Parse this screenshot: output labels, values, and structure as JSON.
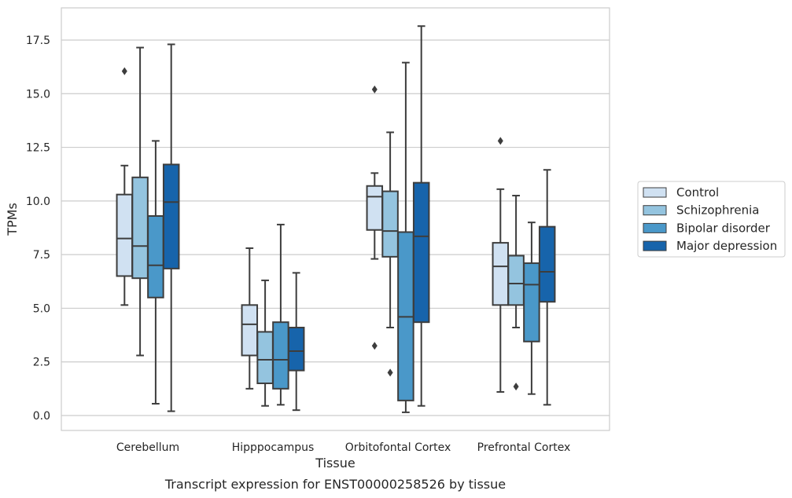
{
  "chart_data": {
    "type": "box",
    "title": "",
    "caption": "Transcript expression for ENST00000258526 by tissue",
    "xlabel": "Tissue",
    "ylabel": "TPMs",
    "ylim": [
      -0.7,
      19.1
    ],
    "yticks": [
      0.0,
      2.5,
      5.0,
      7.5,
      10.0,
      12.5,
      15.0,
      17.5
    ],
    "ytick_labels": [
      "0.0",
      "2.5",
      "5.0",
      "7.5",
      "10.0",
      "12.5",
      "15.0",
      "17.5"
    ],
    "grid": "horizontal",
    "legend_position": "right",
    "categories": [
      "Cerebellum",
      "Hipppocampus",
      "Orbitofontal Cortex",
      "Prefrontal Cortex"
    ],
    "series": [
      {
        "name": "Control",
        "color": "#d0e1f2",
        "boxes": [
          {
            "whisker_low": 5.15,
            "q1": 6.5,
            "median": 8.25,
            "q3": 10.3,
            "whisker_high": 11.65,
            "outliers": [
              16.05
            ]
          },
          {
            "whisker_low": 1.25,
            "q1": 2.8,
            "median": 4.25,
            "q3": 5.15,
            "whisker_high": 7.8,
            "outliers": []
          },
          {
            "whisker_low": 7.3,
            "q1": 8.65,
            "median": 10.2,
            "q3": 10.7,
            "whisker_high": 11.3,
            "outliers": [
              15.2,
              3.25
            ]
          },
          {
            "whisker_low": 1.1,
            "q1": 5.15,
            "median": 6.95,
            "q3": 8.05,
            "whisker_high": 10.55,
            "outliers": [
              12.8
            ]
          }
        ]
      },
      {
        "name": "Schizophrenia",
        "color": "#94c4df",
        "boxes": [
          {
            "whisker_low": 2.8,
            "q1": 6.4,
            "median": 7.9,
            "q3": 11.1,
            "whisker_high": 17.15,
            "outliers": []
          },
          {
            "whisker_low": 0.45,
            "q1": 1.5,
            "median": 2.6,
            "q3": 3.9,
            "whisker_high": 6.3,
            "outliers": []
          },
          {
            "whisker_low": 4.1,
            "q1": 7.4,
            "median": 8.6,
            "q3": 10.45,
            "whisker_high": 13.2,
            "outliers": [
              2.0
            ]
          },
          {
            "whisker_low": 4.1,
            "q1": 5.15,
            "median": 6.15,
            "q3": 7.45,
            "whisker_high": 10.25,
            "outliers": [
              1.35
            ]
          }
        ]
      },
      {
        "name": "Bipolar disorder",
        "color": "#4a98c9",
        "boxes": [
          {
            "whisker_low": 0.55,
            "q1": 5.5,
            "median": 7.0,
            "q3": 9.3,
            "whisker_high": 12.8,
            "outliers": []
          },
          {
            "whisker_low": 0.5,
            "q1": 1.25,
            "median": 2.6,
            "q3": 4.35,
            "whisker_high": 8.9,
            "outliers": []
          },
          {
            "whisker_low": 0.15,
            "q1": 0.7,
            "median": 4.6,
            "q3": 8.55,
            "whisker_high": 16.45,
            "outliers": []
          },
          {
            "whisker_low": 1.0,
            "q1": 3.45,
            "median": 6.1,
            "q3": 7.1,
            "whisker_high": 9.0,
            "outliers": []
          }
        ]
      },
      {
        "name": "Major depression",
        "color": "#1764ab",
        "boxes": [
          {
            "whisker_low": 0.2,
            "q1": 6.85,
            "median": 9.95,
            "q3": 11.7,
            "whisker_high": 17.3,
            "outliers": []
          },
          {
            "whisker_low": 0.25,
            "q1": 2.1,
            "median": 3.0,
            "q3": 4.1,
            "whisker_high": 6.65,
            "outliers": []
          },
          {
            "whisker_low": 0.45,
            "q1": 4.35,
            "median": 8.35,
            "q3": 10.85,
            "whisker_high": 18.15,
            "outliers": []
          },
          {
            "whisker_low": 0.5,
            "q1": 5.3,
            "median": 6.7,
            "q3": 8.8,
            "whisker_high": 11.45,
            "outliers": []
          }
        ]
      }
    ],
    "colors": {
      "grid": "#cccccc",
      "frame": "#cccccc",
      "box_edge": "#3d3d3d",
      "background": "#ffffff"
    }
  }
}
